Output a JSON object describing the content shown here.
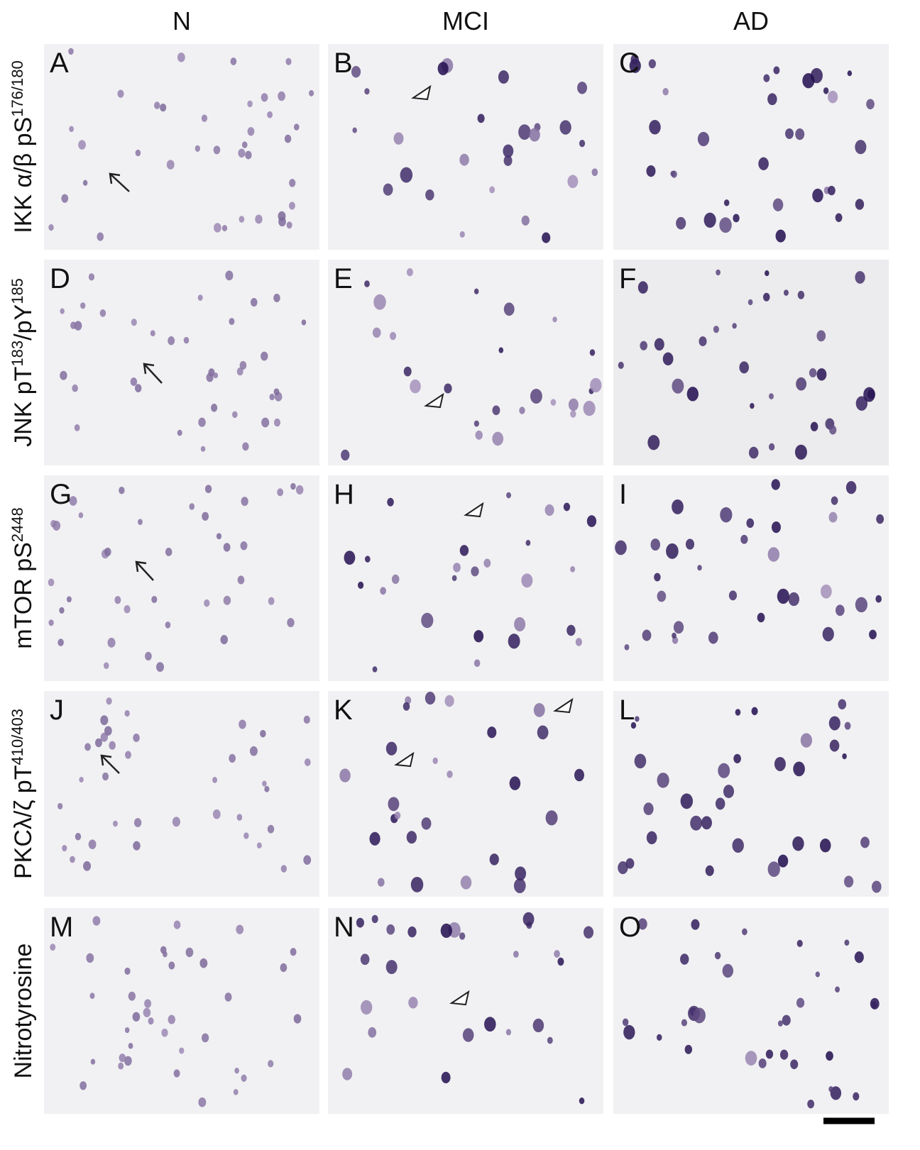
{
  "column_headers": [
    "N",
    "MCI",
    "AD"
  ],
  "row_labels": [
    [
      "IKK α/β pS",
      "176/180"
    ],
    [
      "JNK pT",
      "183",
      "/pY",
      "185"
    ],
    [
      "mTOR pS",
      "2448"
    ],
    [
      "PKCλ/ζ pT",
      "410/403"
    ],
    [
      "Nitrotyrosine"
    ]
  ],
  "panel_letters": [
    [
      "A",
      "B",
      "C"
    ],
    [
      "D",
      "E",
      "F"
    ],
    [
      "G",
      "H",
      "I"
    ],
    [
      "J",
      "K",
      "L"
    ],
    [
      "M",
      "N",
      "O"
    ]
  ]
}
